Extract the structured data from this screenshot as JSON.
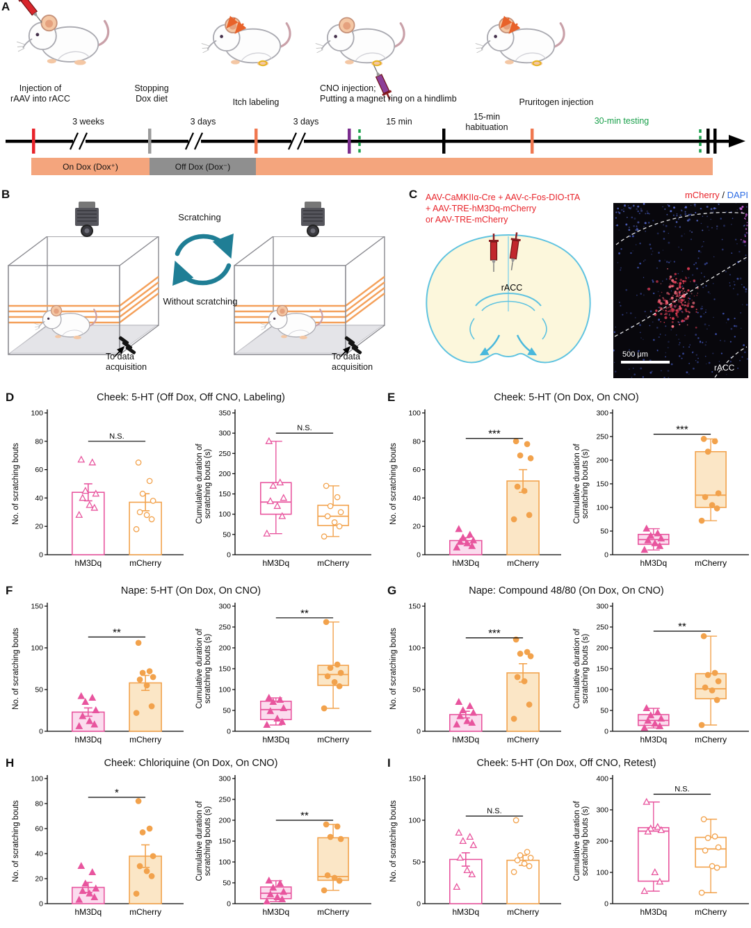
{
  "colors": {
    "hm3dq": "#E8559E",
    "hm3dq_fill": "#FBDCEE",
    "mcherry": "#F2A24C",
    "mcherry_fill": "#FBE6C6",
    "timeline_orange": "#F4A57D",
    "timeline_gray": "#8F8F8F",
    "green": "#1AA04B",
    "red": "#E8232A",
    "purple": "#7B2D8E",
    "blue_dapi": "#2B6BE4",
    "teal": "#1F7E95"
  },
  "panelA": {
    "label": "A",
    "injection": "Injection of\nrAAV into rACC",
    "weeks3": "3 weeks",
    "stopping": "Stopping\nDox diet",
    "days3a": "3 days",
    "itch_labeling": "Itch labeling",
    "days3b": "3 days",
    "cno": "CNO injection;\nPutting a magnet ring on a hindlimb",
    "min15": "15 min",
    "habituation": "15-min\nhabituation",
    "pruritogen": "Pruritogen injection",
    "testing": "30-min testing",
    "on_dox": "On Dox (Dox⁺)",
    "off_dox": "Off Dox (Dox⁻)"
  },
  "panelB": {
    "label": "B",
    "scratching": "Scratching",
    "without": "Without scratching",
    "to_data": "To data\nacquisition"
  },
  "panelC": {
    "label": "C",
    "aav_lines": "AAV-CaMKIIα-Cre + AAV-c-Fos-DIO-tTA\n+ AAV-TRE-hM3Dq-mCherry\nor  AAV-TRE-mCherry",
    "racc_brain": "rACC",
    "mcherry": "mCherry",
    "slash": " / ",
    "dapi": "DAPI",
    "racc_micro": "rACC",
    "scalebar": "500 μm"
  },
  "chart_data": [
    {
      "panel": "D",
      "title": "Cheek: 5-HT (Off Dox, Off CNO, Labeling)",
      "charts": [
        {
          "type": "bar",
          "ylabel": "No. of scratching bouts",
          "ylim": [
            0,
            100
          ],
          "ytick": 20,
          "open_markers": true,
          "categories": [
            "hM3Dq",
            "mCherry"
          ],
          "means": [
            44,
            37
          ],
          "sems": [
            6,
            6
          ],
          "points": [
            [
              67,
              65,
              45,
              43,
              40,
              35,
              33,
              28
            ],
            [
              65,
              52,
              43,
              38,
              30,
              28,
              25,
              18
            ]
          ],
          "sig": {
            "label": "N.S.",
            "y": 80
          }
        },
        {
          "type": "box",
          "ylabel": "Cumulative duration of scratching bouts (s)",
          "ylim": [
            0,
            350
          ],
          "ytick": 50,
          "open_markers": true,
          "categories": [
            "hM3Dq",
            "mCherry"
          ],
          "boxes": [
            {
              "lo": 52,
              "q1": 100,
              "med": 130,
              "q3": 178,
              "hi": 280
            },
            {
              "lo": 45,
              "q1": 72,
              "med": 95,
              "q3": 122,
              "hi": 170
            }
          ],
          "points": [
            [
              280,
              178,
              170,
              140,
              132,
              120,
              95,
              52
            ],
            [
              170,
              142,
              120,
              105,
              95,
              80,
              70,
              45
            ]
          ],
          "sig": {
            "label": "N.S.",
            "y": 300
          }
        }
      ]
    },
    {
      "panel": "E",
      "title": "Cheek: 5-HT (On Dox, On CNO)",
      "charts": [
        {
          "type": "bar",
          "ylabel": "No. of scratching bouts",
          "ylim": [
            0,
            100
          ],
          "ytick": 20,
          "open_markers": false,
          "categories": [
            "hM3Dq",
            "mCherry"
          ],
          "means": [
            10,
            52
          ],
          "sems": [
            2,
            8
          ],
          "points": [
            [
              18,
              14,
              12,
              10,
              9,
              8,
              6,
              5
            ],
            [
              80,
              78,
              70,
              68,
              48,
              45,
              28,
              25
            ]
          ],
          "sig": {
            "label": "***",
            "y": 82
          }
        },
        {
          "type": "box",
          "ylabel": "Cumulative duration of scratching bouts (s)",
          "ylim": [
            0,
            300
          ],
          "ytick": 50,
          "open_markers": false,
          "categories": [
            "hM3Dq",
            "mCherry"
          ],
          "boxes": [
            {
              "lo": 10,
              "q1": 22,
              "med": 32,
              "q3": 43,
              "hi": 55
            },
            {
              "lo": 72,
              "q1": 100,
              "med": 126,
              "q3": 218,
              "hi": 245
            }
          ],
          "points": [
            [
              55,
              45,
              40,
              34,
              30,
              24,
              18,
              10
            ],
            [
              245,
              240,
              218,
              130,
              122,
              105,
              98,
              72
            ]
          ],
          "sig": {
            "label": "***",
            "y": 255
          }
        }
      ]
    },
    {
      "panel": "F",
      "title": "Nape: 5-HT (On Dox, On CNO)",
      "charts": [
        {
          "type": "bar",
          "ylabel": "No. of scratching bouts",
          "ylim": [
            0,
            150
          ],
          "ytick": 50,
          "open_markers": false,
          "categories": [
            "hM3Dq",
            "mCherry"
          ],
          "means": [
            23,
            58
          ],
          "sems": [
            5,
            9
          ],
          "points": [
            [
              42,
              40,
              35,
              25,
              18,
              12,
              8,
              6
            ],
            [
              106,
              72,
              70,
              65,
              62,
              55,
              30,
              22
            ]
          ],
          "sig": {
            "label": "**",
            "y": 113
          }
        },
        {
          "type": "box",
          "ylabel": "Cumulative duration of scratching bouts (s)",
          "ylim": [
            0,
            300
          ],
          "ytick": 50,
          "open_markers": false,
          "categories": [
            "hM3Dq",
            "mCherry"
          ],
          "boxes": [
            {
              "lo": 15,
              "q1": 28,
              "med": 52,
              "q3": 72,
              "hi": 80
            },
            {
              "lo": 55,
              "q1": 110,
              "med": 136,
              "q3": 158,
              "hi": 262
            }
          ],
          "points": [
            [
              80,
              75,
              70,
              55,
              48,
              30,
              22,
              15
            ],
            [
              262,
              160,
              152,
              140,
              132,
              118,
              108,
              55
            ]
          ],
          "sig": {
            "label": "**",
            "y": 272
          }
        }
      ]
    },
    {
      "panel": "G",
      "title": "Nape: Compound 48/80 (On Dox, On CNO)",
      "charts": [
        {
          "type": "bar",
          "ylabel": "No. of scratching bouts",
          "ylim": [
            0,
            150
          ],
          "ytick": 50,
          "open_markers": false,
          "categories": [
            "hM3Dq",
            "mCherry"
          ],
          "means": [
            20,
            70
          ],
          "sems": [
            4,
            11
          ],
          "points": [
            [
              35,
              30,
              25,
              22,
              18,
              12,
              10,
              8
            ],
            [
              110,
              95,
              93,
              90,
              65,
              60,
              32,
              15
            ]
          ],
          "sig": {
            "label": "***",
            "y": 112
          }
        },
        {
          "type": "box",
          "ylabel": "Cumulative duration of scratching bouts (s)",
          "ylim": [
            0,
            300
          ],
          "ytick": 50,
          "open_markers": false,
          "categories": [
            "hM3Dq",
            "mCherry"
          ],
          "boxes": [
            {
              "lo": 8,
              "q1": 14,
              "med": 26,
              "q3": 40,
              "hi": 55
            },
            {
              "lo": 15,
              "q1": 78,
              "med": 102,
              "q3": 138,
              "hi": 228
            }
          ],
          "points": [
            [
              55,
              45,
              38,
              30,
              25,
              18,
              12,
              8
            ],
            [
              228,
              140,
              135,
              120,
              105,
              98,
              75,
              15
            ]
          ],
          "sig": {
            "label": "**",
            "y": 240
          }
        }
      ]
    },
    {
      "panel": "H",
      "title": "Cheek: Chloriquine (On Dox, On CNO)",
      "charts": [
        {
          "type": "bar",
          "ylabel": "No. of scratching bouts",
          "ylim": [
            0,
            100
          ],
          "ytick": 20,
          "open_markers": false,
          "categories": [
            "hM3Dq",
            "mCherry"
          ],
          "means": [
            13,
            38
          ],
          "sems": [
            4,
            9
          ],
          "points": [
            [
              30,
              25,
              16,
              12,
              10,
              8,
              5,
              3
            ],
            [
              82,
              60,
              57,
              38,
              30,
              26,
              22,
              8
            ]
          ],
          "sig": {
            "label": "*",
            "y": 85
          }
        },
        {
          "type": "box",
          "ylabel": "Cumulative duration of scratching bouts (s)",
          "ylim": [
            0,
            300
          ],
          "ytick": 50,
          "open_markers": false,
          "categories": [
            "hM3Dq",
            "mCherry"
          ],
          "boxes": [
            {
              "lo": 5,
              "q1": 12,
              "med": 25,
              "q3": 40,
              "hi": 55
            },
            {
              "lo": 32,
              "q1": 56,
              "med": 65,
              "q3": 158,
              "hi": 190
            }
          ],
          "points": [
            [
              55,
              48,
              38,
              28,
              22,
              15,
              10,
              5
            ],
            [
              190,
              185,
              160,
              155,
              68,
              62,
              55,
              32
            ]
          ],
          "sig": {
            "label": "**",
            "y": 200
          }
        }
      ]
    },
    {
      "panel": "I",
      "title": "Cheek: 5-HT (On Dox, Off CNO, Retest)",
      "charts": [
        {
          "type": "bar",
          "ylabel": "No. of scratching bouts",
          "ylim": [
            0,
            150
          ],
          "ytick": 50,
          "open_markers": true,
          "categories": [
            "hM3Dq",
            "mCherry"
          ],
          "means": [
            53,
            52
          ],
          "sems": [
            8,
            6
          ],
          "points": [
            [
              85,
              80,
              75,
              70,
              55,
              40,
              35,
              20
            ],
            [
              100,
              62,
              58,
              55,
              52,
              48,
              45,
              38
            ]
          ],
          "sig": {
            "label": "N.S.",
            "y": 105
          }
        },
        {
          "type": "box",
          "ylabel": "Cumulative duration of scratching bouts (s)",
          "ylim": [
            0,
            400
          ],
          "ytick": 100,
          "open_markers": true,
          "categories": [
            "hM3Dq",
            "mCherry"
          ],
          "boxes": [
            {
              "lo": 40,
              "q1": 72,
              "med": 232,
              "q3": 243,
              "hi": 325
            },
            {
              "lo": 35,
              "q1": 117,
              "med": 175,
              "q3": 212,
              "hi": 270
            }
          ],
          "points": [
            [
              325,
              245,
              240,
              235,
              230,
              100,
              70,
              40
            ],
            [
              270,
              215,
              210,
              180,
              170,
              120,
              115,
              35
            ]
          ],
          "sig": {
            "label": "N.S.",
            "y": 350
          }
        }
      ]
    }
  ]
}
